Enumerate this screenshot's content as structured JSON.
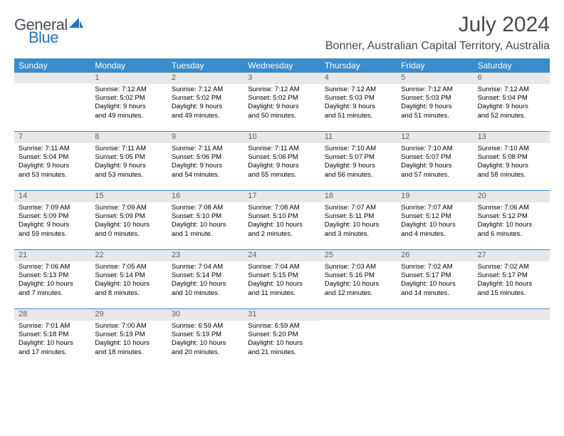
{
  "logo": {
    "general": "General",
    "blue": "Blue"
  },
  "title": "July 2024",
  "location": "Bonner, Australian Capital Territory, Australia",
  "day_names": [
    "Sunday",
    "Monday",
    "Tuesday",
    "Wednesday",
    "Thursday",
    "Friday",
    "Saturday"
  ],
  "header_bg": "#3b8ccb",
  "weeks": [
    [
      {
        "date": "",
        "lines": []
      },
      {
        "date": "1",
        "lines": [
          "Sunrise: 7:12 AM",
          "Sunset: 5:02 PM",
          "Daylight: 9 hours",
          "and 49 minutes."
        ]
      },
      {
        "date": "2",
        "lines": [
          "Sunrise: 7:12 AM",
          "Sunset: 5:02 PM",
          "Daylight: 9 hours",
          "and 49 minutes."
        ]
      },
      {
        "date": "3",
        "lines": [
          "Sunrise: 7:12 AM",
          "Sunset: 5:02 PM",
          "Daylight: 9 hours",
          "and 50 minutes."
        ]
      },
      {
        "date": "4",
        "lines": [
          "Sunrise: 7:12 AM",
          "Sunset: 5:03 PM",
          "Daylight: 9 hours",
          "and 51 minutes."
        ]
      },
      {
        "date": "5",
        "lines": [
          "Sunrise: 7:12 AM",
          "Sunset: 5:03 PM",
          "Daylight: 9 hours",
          "and 51 minutes."
        ]
      },
      {
        "date": "6",
        "lines": [
          "Sunrise: 7:12 AM",
          "Sunset: 5:04 PM",
          "Daylight: 9 hours",
          "and 52 minutes."
        ]
      }
    ],
    [
      {
        "date": "7",
        "lines": [
          "Sunrise: 7:11 AM",
          "Sunset: 5:04 PM",
          "Daylight: 9 hours",
          "and 53 minutes."
        ]
      },
      {
        "date": "8",
        "lines": [
          "Sunrise: 7:11 AM",
          "Sunset: 5:05 PM",
          "Daylight: 9 hours",
          "and 53 minutes."
        ]
      },
      {
        "date": "9",
        "lines": [
          "Sunrise: 7:11 AM",
          "Sunset: 5:06 PM",
          "Daylight: 9 hours",
          "and 54 minutes."
        ]
      },
      {
        "date": "10",
        "lines": [
          "Sunrise: 7:11 AM",
          "Sunset: 5:06 PM",
          "Daylight: 9 hours",
          "and 55 minutes."
        ]
      },
      {
        "date": "11",
        "lines": [
          "Sunrise: 7:10 AM",
          "Sunset: 5:07 PM",
          "Daylight: 9 hours",
          "and 56 minutes."
        ]
      },
      {
        "date": "12",
        "lines": [
          "Sunrise: 7:10 AM",
          "Sunset: 5:07 PM",
          "Daylight: 9 hours",
          "and 57 minutes."
        ]
      },
      {
        "date": "13",
        "lines": [
          "Sunrise: 7:10 AM",
          "Sunset: 5:08 PM",
          "Daylight: 9 hours",
          "and 58 minutes."
        ]
      }
    ],
    [
      {
        "date": "14",
        "lines": [
          "Sunrise: 7:09 AM",
          "Sunset: 5:09 PM",
          "Daylight: 9 hours",
          "and 59 minutes."
        ]
      },
      {
        "date": "15",
        "lines": [
          "Sunrise: 7:09 AM",
          "Sunset: 5:09 PM",
          "Daylight: 10 hours",
          "and 0 minutes."
        ]
      },
      {
        "date": "16",
        "lines": [
          "Sunrise: 7:08 AM",
          "Sunset: 5:10 PM",
          "Daylight: 10 hours",
          "and 1 minute."
        ]
      },
      {
        "date": "17",
        "lines": [
          "Sunrise: 7:08 AM",
          "Sunset: 5:10 PM",
          "Daylight: 10 hours",
          "and 2 minutes."
        ]
      },
      {
        "date": "18",
        "lines": [
          "Sunrise: 7:07 AM",
          "Sunset: 5:11 PM",
          "Daylight: 10 hours",
          "and 3 minutes."
        ]
      },
      {
        "date": "19",
        "lines": [
          "Sunrise: 7:07 AM",
          "Sunset: 5:12 PM",
          "Daylight: 10 hours",
          "and 4 minutes."
        ]
      },
      {
        "date": "20",
        "lines": [
          "Sunrise: 7:06 AM",
          "Sunset: 5:12 PM",
          "Daylight: 10 hours",
          "and 6 minutes."
        ]
      }
    ],
    [
      {
        "date": "21",
        "lines": [
          "Sunrise: 7:06 AM",
          "Sunset: 5:13 PM",
          "Daylight: 10 hours",
          "and 7 minutes."
        ]
      },
      {
        "date": "22",
        "lines": [
          "Sunrise: 7:05 AM",
          "Sunset: 5:14 PM",
          "Daylight: 10 hours",
          "and 8 minutes."
        ]
      },
      {
        "date": "23",
        "lines": [
          "Sunrise: 7:04 AM",
          "Sunset: 5:14 PM",
          "Daylight: 10 hours",
          "and 10 minutes."
        ]
      },
      {
        "date": "24",
        "lines": [
          "Sunrise: 7:04 AM",
          "Sunset: 5:15 PM",
          "Daylight: 10 hours",
          "and 11 minutes."
        ]
      },
      {
        "date": "25",
        "lines": [
          "Sunrise: 7:03 AM",
          "Sunset: 5:16 PM",
          "Daylight: 10 hours",
          "and 12 minutes."
        ]
      },
      {
        "date": "26",
        "lines": [
          "Sunrise: 7:02 AM",
          "Sunset: 5:17 PM",
          "Daylight: 10 hours",
          "and 14 minutes."
        ]
      },
      {
        "date": "27",
        "lines": [
          "Sunrise: 7:02 AM",
          "Sunset: 5:17 PM",
          "Daylight: 10 hours",
          "and 15 minutes."
        ]
      }
    ],
    [
      {
        "date": "28",
        "lines": [
          "Sunrise: 7:01 AM",
          "Sunset: 5:18 PM",
          "Daylight: 10 hours",
          "and 17 minutes."
        ]
      },
      {
        "date": "29",
        "lines": [
          "Sunrise: 7:00 AM",
          "Sunset: 5:19 PM",
          "Daylight: 10 hours",
          "and 18 minutes."
        ]
      },
      {
        "date": "30",
        "lines": [
          "Sunrise: 6:59 AM",
          "Sunset: 5:19 PM",
          "Daylight: 10 hours",
          "and 20 minutes."
        ]
      },
      {
        "date": "31",
        "lines": [
          "Sunrise: 6:59 AM",
          "Sunset: 5:20 PM",
          "Daylight: 10 hours",
          "and 21 minutes."
        ]
      },
      {
        "date": "",
        "lines": []
      },
      {
        "date": "",
        "lines": []
      },
      {
        "date": "",
        "lines": []
      }
    ]
  ]
}
